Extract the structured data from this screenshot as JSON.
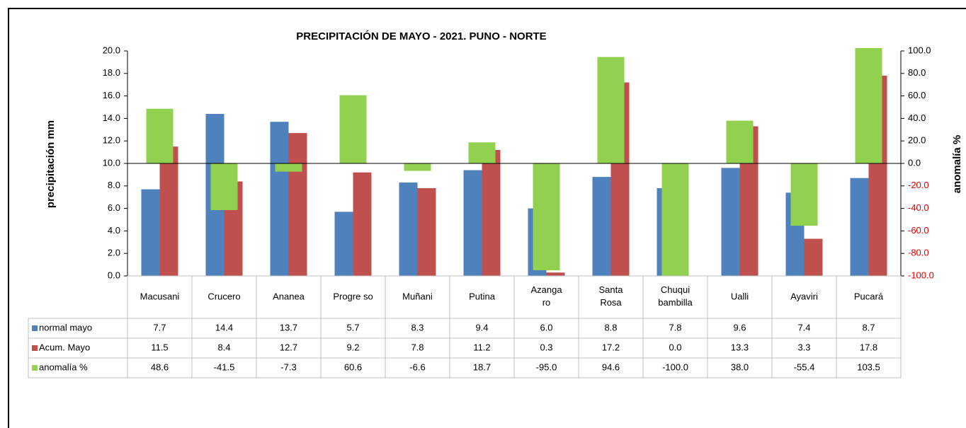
{
  "chart_data": {
    "type": "bar",
    "title": "PRECIPITACIÓN DE MAYO - 2021. PUNO - NORTE",
    "y_label": "precipitación mm",
    "y2_label": "anomalía %",
    "categories": [
      "Macusani",
      "Crucero",
      "Ananea",
      "Progre so",
      "Muñani",
      "Putina",
      "Azanga\nro",
      "Santa\nRosa",
      "Chuqui\nbambilla",
      "Ualli",
      "Ayaviri",
      "Pucará"
    ],
    "series": [
      {
        "name": "normal mayo",
        "color": "#4f81bd",
        "values": [
          7.7,
          14.4,
          13.7,
          5.7,
          8.3,
          9.4,
          6.0,
          8.8,
          7.8,
          9.6,
          7.4,
          8.7
        ],
        "value_labels": [
          "7.7",
          "14.4",
          "13.7",
          "5.7",
          "8.3",
          "9.4",
          "6.0",
          "8.8",
          "7.8",
          "9.6",
          "7.4",
          "8.7"
        ]
      },
      {
        "name": "Acum. Mayo",
        "color": "#c0504d",
        "values": [
          11.5,
          8.4,
          12.7,
          9.2,
          7.8,
          11.2,
          0.3,
          17.2,
          0.0,
          13.3,
          3.3,
          17.8
        ],
        "value_labels": [
          "11.5",
          "8.4",
          "12.7",
          "9.2",
          "7.8",
          "11.2",
          "0.3",
          "17.2",
          "0.0",
          "13.3",
          "3.3",
          "17.8"
        ]
      },
      {
        "name": "anomalía %",
        "color": "#92d050",
        "axis": "y2",
        "values": [
          48.6,
          -41.5,
          -7.3,
          60.6,
          -6.6,
          18.7,
          -95.0,
          94.6,
          -100.0,
          38.0,
          -55.4,
          103.5
        ],
        "value_labels": [
          "48.6",
          "-41.5",
          "-7.3",
          "60.6",
          "-6.6",
          "18.7",
          "-95.0",
          "94.6",
          "-100.0",
          "38.0",
          "-55.4",
          "103.5"
        ]
      }
    ],
    "ylim": [
      0,
      20
    ],
    "yticks": [
      {
        "value": 0,
        "label": "0.0"
      },
      {
        "value": 2,
        "label": "2.0"
      },
      {
        "value": 4,
        "label": "4.0"
      },
      {
        "value": 6,
        "label": "6.0"
      },
      {
        "value": 8,
        "label": "8.0"
      },
      {
        "value": 10,
        "label": "10.0"
      },
      {
        "value": 12,
        "label": "12.0"
      },
      {
        "value": 14,
        "label": "14.0"
      },
      {
        "value": 16,
        "label": "16.0"
      },
      {
        "value": 18,
        "label": "18.0"
      },
      {
        "value": 20,
        "label": "20.0"
      }
    ],
    "y2lim": [
      -100,
      100
    ],
    "y2ticks": [
      {
        "value": -100,
        "label": "-100.0"
      },
      {
        "value": -80,
        "label": "-80.0"
      },
      {
        "value": -60,
        "label": "-60.0"
      },
      {
        "value": -40,
        "label": "-40.0"
      },
      {
        "value": -20,
        "label": "-20.0"
      },
      {
        "value": 0,
        "label": "0.0"
      },
      {
        "value": 20,
        "label": "20.0"
      },
      {
        "value": 40,
        "label": "40.0"
      },
      {
        "value": 60,
        "label": "60.0"
      },
      {
        "value": 80,
        "label": "80.0"
      },
      {
        "value": 100,
        "label": "100.0"
      }
    ]
  }
}
